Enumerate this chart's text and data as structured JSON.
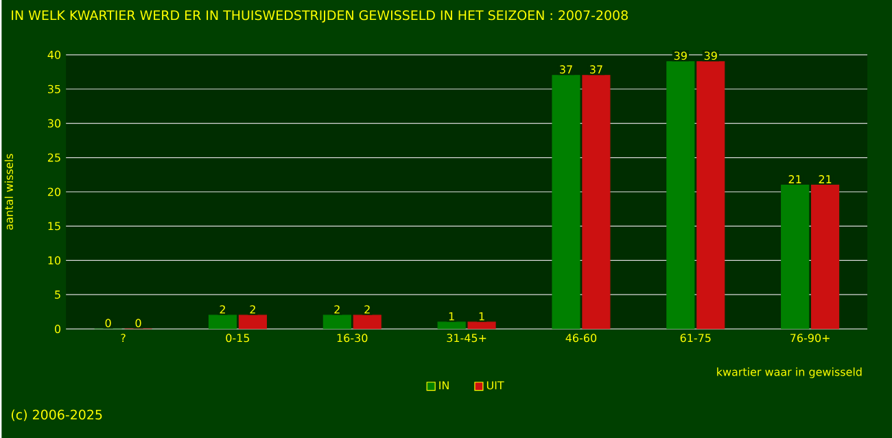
{
  "chart_data": {
    "type": "bar",
    "title": "IN WELK KWARTIER WERD ER IN THUISWEDSTRIJDEN GEWISSELD IN HET SEIZOEN : 2007-2008",
    "xlabel": "kwartier waar in gewisseld",
    "ylabel": "aantal wissels",
    "categories": [
      "?",
      "0-15",
      "16-30",
      "31-45+",
      "46-60",
      "61-75",
      "76-90+"
    ],
    "series": [
      {
        "name": "IN",
        "color": "#008000",
        "values": [
          0,
          2,
          2,
          1,
          37,
          39,
          21
        ]
      },
      {
        "name": "UIT",
        "color": "#cc1111",
        "values": [
          0,
          2,
          2,
          1,
          37,
          39,
          21
        ]
      }
    ],
    "ylim": [
      0,
      40
    ],
    "yticks": [
      0,
      5,
      10,
      15,
      20,
      25,
      30,
      35,
      40
    ],
    "grid": "y",
    "legend": "bottom",
    "data_labels": true,
    "annotations": [
      "(c) 2006-2025"
    ]
  }
}
